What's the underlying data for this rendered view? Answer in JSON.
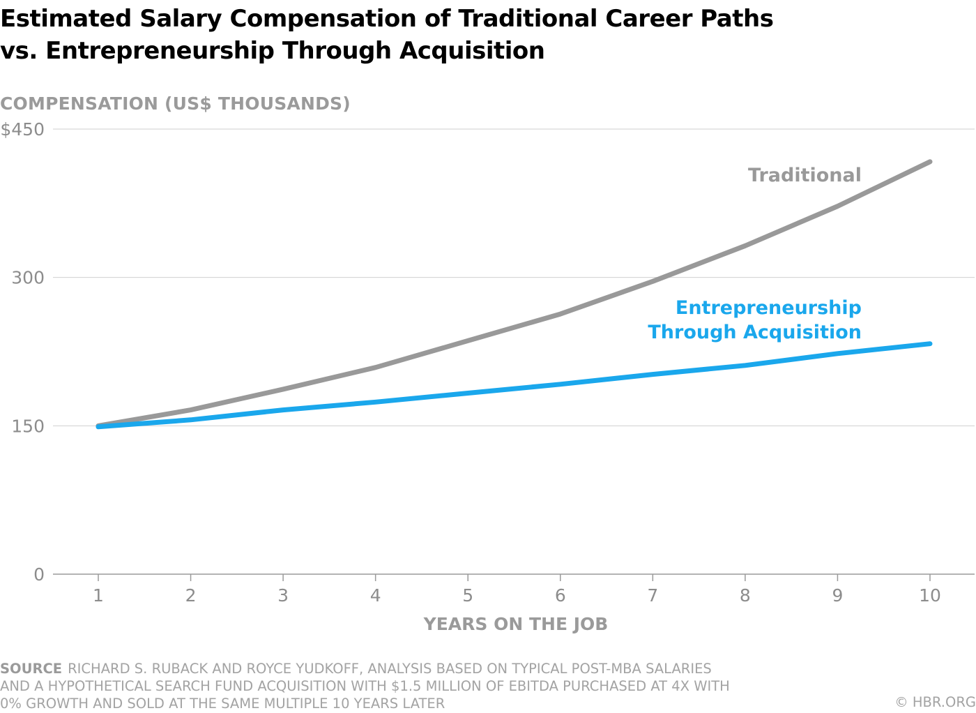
{
  "title": {
    "line1": "Estimated Salary Compensation of Traditional Career Paths",
    "line2": "vs. Entrepreneurship Through Acquisition"
  },
  "chart_data": {
    "type": "line",
    "title": "Estimated Salary Compensation of Traditional Career Paths vs. Entrepreneurship Through Acquisition",
    "ylabel": "COMPENSATION (US$ THOUSANDS)",
    "xlabel": "YEARS ON THE JOB",
    "x": [
      1,
      2,
      3,
      4,
      5,
      6,
      7,
      8,
      9,
      10
    ],
    "xlim": [
      0.5,
      10.5
    ],
    "ylim": [
      0,
      450
    ],
    "yticks": [
      0,
      150,
      300,
      450
    ],
    "ytick_labels": [
      "0",
      "150",
      "300",
      "$450"
    ],
    "grid": "horizontal at 150, 300, 450",
    "legend": "direct labels next to lines",
    "series": [
      {
        "name": "Traditional",
        "label_lines": [
          "Traditional"
        ],
        "color": "#999999",
        "values": [
          150,
          166,
          187,
          209,
          236,
          263,
          296,
          332,
          372,
          417
        ]
      },
      {
        "name": "Entrepreneurship Through Acquisition",
        "label_lines": [
          "Entrepreneurship",
          "Through Acquisition"
        ],
        "color": "#1aa7ec",
        "values": [
          149,
          156,
          166,
          174,
          183,
          192,
          202,
          211,
          223,
          233
        ]
      }
    ]
  },
  "source": {
    "label": "SOURCE",
    "line1": "RICHARD S. RUBACK AND ROYCE YUDKOFF, ANALYSIS BASED ON TYPICAL POST-MBA SALARIES",
    "line2": "AND A HYPOTHETICAL SEARCH FUND ACQUISITION WITH $1.5 MILLION OF EBITDA PURCHASED AT 4X WITH",
    "line3": "0% GROWTH AND SOLD AT THE SAME MULTIPLE 10 YEARS LATER"
  },
  "credit": "© HBR.ORG"
}
